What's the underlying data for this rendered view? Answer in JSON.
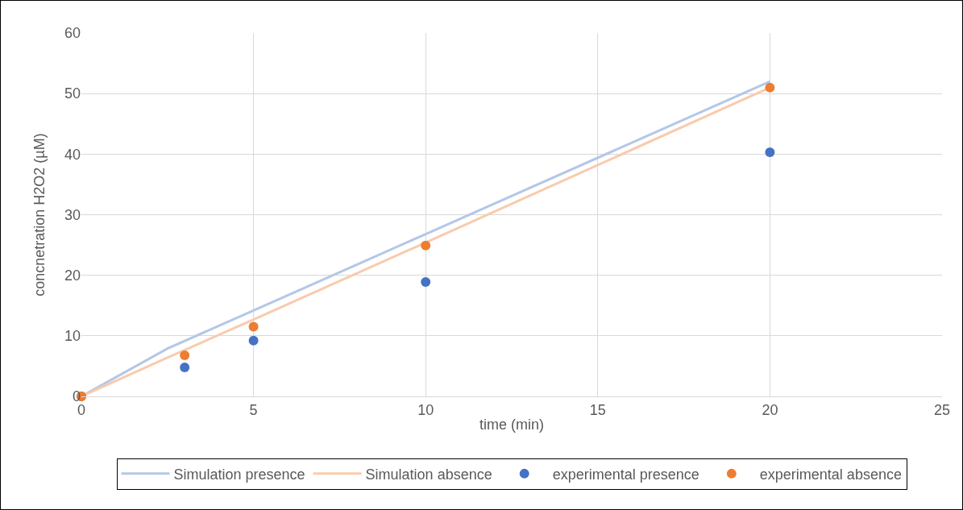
{
  "chart_data": {
    "type": "scatter",
    "xlabel": "time (min)",
    "ylabel": "concnetration H2O2 (µM)",
    "xlim": [
      0,
      25
    ],
    "xticks": [
      0,
      5,
      10,
      15,
      20,
      25
    ],
    "ylim": [
      0,
      60
    ],
    "yticks": [
      0,
      10,
      20,
      30,
      40,
      50,
      60
    ],
    "grid": true,
    "legend": "bottom",
    "series": [
      {
        "name": "Simulation presence",
        "type": "line",
        "marker": "none",
        "color": "#b4c7e7",
        "x": [
          0,
          2.5,
          5,
          10,
          20
        ],
        "values": [
          0,
          7.9,
          14.2,
          26.8,
          52
        ]
      },
      {
        "name": "Simulation absence",
        "type": "line",
        "marker": "none",
        "color": "#f8cbad",
        "x": [
          0,
          2.5,
          5,
          10,
          20
        ],
        "values": [
          0,
          6.4,
          12.7,
          25.4,
          51
        ]
      },
      {
        "name": "experimental presence",
        "marker": "circle",
        "color": "#4472c4",
        "x": [
          0,
          3,
          5,
          10,
          20
        ],
        "values": [
          0,
          4.8,
          9.2,
          18.9,
          40.3
        ]
      },
      {
        "name": "experimental absence",
        "marker": "circle",
        "color": "#ed7d31",
        "x": [
          0,
          3,
          5,
          10,
          20
        ],
        "values": [
          0,
          6.8,
          11.5,
          24.9,
          51
        ]
      }
    ]
  }
}
